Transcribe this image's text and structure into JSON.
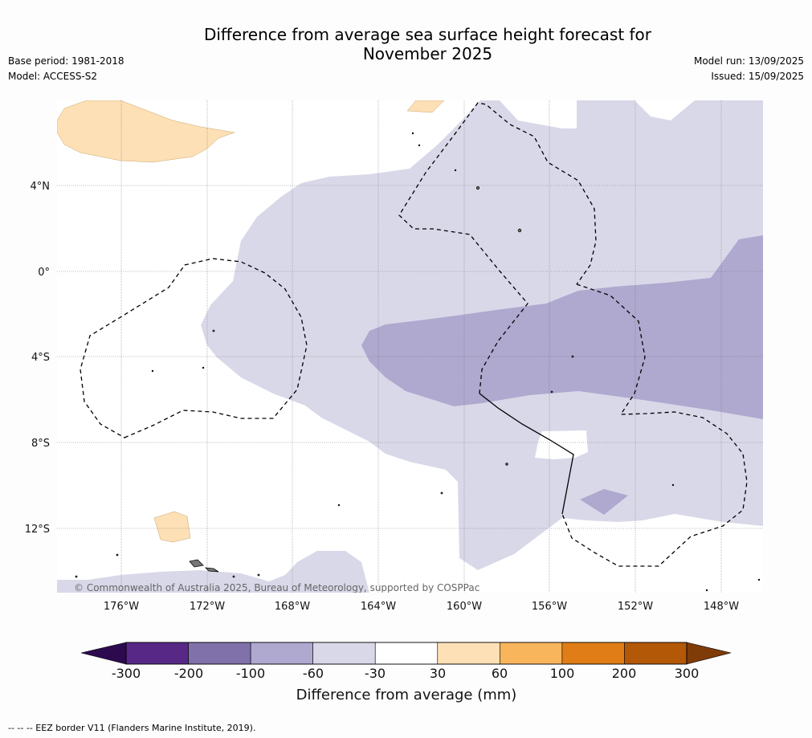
{
  "title": "Difference from average sea surface height forecast for November 2025",
  "meta": {
    "base_period": "Base period: 1981-2018",
    "model": "Model: ACCESS-S2",
    "model_run": "Model run: 13/09/2025",
    "issued": "Issued: 15/09/2025"
  },
  "map": {
    "lat_labels": [
      "4°N",
      "0°",
      "4°S",
      "8°S",
      "12°S"
    ],
    "lon_labels": [
      "176°W",
      "172°W",
      "168°W",
      "164°W",
      "160°W",
      "156°W",
      "152°W",
      "148°W"
    ],
    "copyright": "© Commonwealth of Australia 2025, Bureau of Meteorology, supported by COSPPac"
  },
  "colorbar": {
    "title": "Difference from average (mm)",
    "ticks": [
      "-300",
      "-200",
      "-100",
      "-60",
      "-30",
      "30",
      "60",
      "100",
      "200",
      "300"
    ],
    "colors": {
      "below_min": "#2d0a4e",
      "bins": [
        "#572886",
        "#8071ab",
        "#afa8cf",
        "#d8d8e9",
        "#ffffff",
        "#fde0b6",
        "#f8b55c",
        "#e07d17",
        "#b35806"
      ],
      "above_max": "#7f3b08"
    }
  },
  "footer": "--  --  -- EEZ border V11 (Flanders Marine Institute, 2019)."
}
